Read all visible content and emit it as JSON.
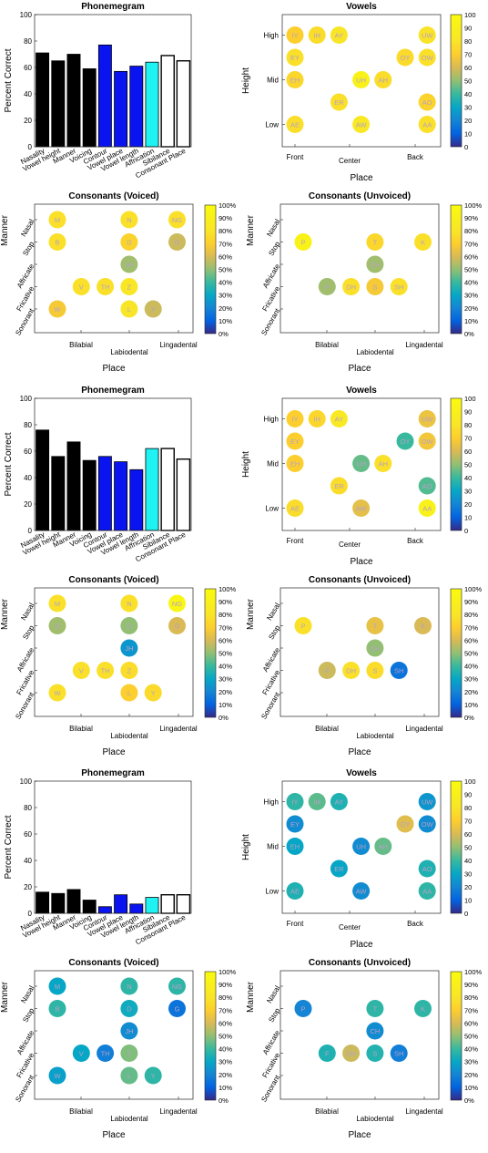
{
  "common": {
    "phone_title": "Phonemegram",
    "phone_ylabel": "Percent Correct",
    "phone_categories": [
      "Nasality",
      "Vowel height",
      "Manner",
      "Voicing",
      "Contour",
      "Vowel place",
      "Vowel length",
      "Affrication",
      "Sibilance",
      "Consonant Place"
    ],
    "phone_yticks": [
      "0",
      "20",
      "40",
      "60",
      "80",
      "100"
    ],
    "vowels_title": "Vowels",
    "vowels_xlabel": "Place",
    "vowels_ylabel": "Height",
    "vowels_xticks": [
      "Front",
      "Center",
      "Back"
    ],
    "vowels_yticks": [
      "High",
      "Mid",
      "Low"
    ],
    "cons_v_title": "Consonants (Voiced)",
    "cons_u_title": "Consonants (Unvoiced)",
    "cons_xlabel": "Place",
    "cons_ylabel": "Manner",
    "cons_xticks": [
      "Bilabial",
      "Labiodental",
      "Lingadental"
    ],
    "cons_yticks": [
      "Nasal",
      "Stop",
      "Affricate",
      "Fricative",
      "Sonorant"
    ],
    "colorbar_ticks_vowel": [
      "0",
      "10",
      "20",
      "30",
      "40",
      "50",
      "60",
      "70",
      "80",
      "90",
      "100"
    ],
    "colorbar_ticks_pct": [
      "0%",
      "10%",
      "20%",
      "30%",
      "40%",
      "50%",
      "60%",
      "70%",
      "80%",
      "90%",
      "100%"
    ],
    "colors": {
      "black_bar": "#000000",
      "blue_bar": "#0a14f0",
      "cyan_bar": "#1ef2f2",
      "white_bar": "#ffffff"
    }
  },
  "chart_data": [
    {
      "type": "bar",
      "title": "Phonemegram",
      "ylabel": "Percent Correct",
      "ylim": [
        0,
        100
      ],
      "categories": [
        "Nasality",
        "Vowel height",
        "Manner",
        "Voicing",
        "Contour",
        "Vowel place",
        "Vowel length",
        "Affrication",
        "Sibilance",
        "Consonant Place"
      ],
      "bar_colors": [
        "black",
        "black",
        "black",
        "black",
        "blue",
        "blue",
        "blue",
        "cyan",
        "white",
        "white"
      ],
      "rows": [
        [
          71,
          65,
          70,
          59,
          77,
          57,
          61,
          64,
          69,
          65
        ],
        [
          76,
          56,
          67,
          53,
          56,
          52,
          46,
          62,
          62,
          54
        ],
        [
          16,
          15,
          18,
          10,
          5,
          14,
          7,
          12,
          14,
          14
        ]
      ]
    },
    {
      "type": "scatter",
      "title": "Vowels",
      "xlabel": "Place",
      "ylabel": "Height",
      "color_range": [
        0,
        100
      ],
      "points": [
        {
          "label": "IY",
          "col": 0,
          "row": 0
        },
        {
          "label": "IH",
          "col": 1,
          "row": 0
        },
        {
          "label": "AY",
          "col": 2,
          "row": 0
        },
        {
          "label": "UW",
          "col": 6,
          "row": 0
        },
        {
          "label": "EY",
          "col": 0,
          "row": 1
        },
        {
          "label": "OY",
          "col": 5,
          "row": 1
        },
        {
          "label": "OW",
          "col": 6,
          "row": 1
        },
        {
          "label": "EH",
          "col": 0,
          "row": 2
        },
        {
          "label": "UH",
          "col": 3,
          "row": 2
        },
        {
          "label": "AH",
          "col": 4,
          "row": 2
        },
        {
          "label": "ER",
          "col": 2,
          "row": 3
        },
        {
          "label": "AO",
          "col": 6,
          "row": 3
        },
        {
          "label": "AE",
          "col": 0,
          "row": 4
        },
        {
          "label": "AW",
          "col": 3,
          "row": 4
        },
        {
          "label": "AA",
          "col": 6,
          "row": 4
        }
      ],
      "rows": [
        [
          70,
          76,
          80,
          79,
          78,
          75,
          78,
          74,
          92,
          76,
          78,
          72,
          77,
          83,
          78
        ],
        [
          70,
          74,
          84,
          65,
          70,
          40,
          67,
          70,
          45,
          78,
          76,
          43,
          76,
          63,
          92
        ],
        [
          38,
          44,
          35,
          25,
          22,
          62,
          22,
          30,
          22,
          45,
          30,
          35,
          35,
          22,
          38
        ]
      ]
    },
    {
      "type": "scatter",
      "title": "Consonants (Voiced)",
      "xlabel": "Place",
      "ylabel": "Manner",
      "color_range": [
        0,
        100
      ],
      "points": [
        {
          "label": "M",
          "col": 0,
          "row": 0
        },
        {
          "label": "N",
          "col": 3,
          "row": 0
        },
        {
          "label": "NG",
          "col": 5,
          "row": 0
        },
        {
          "label": "B",
          "col": 0,
          "row": 1
        },
        {
          "label": "D",
          "col": 3,
          "row": 1
        },
        {
          "label": "G",
          "col": 5,
          "row": 1
        },
        {
          "label": "JH",
          "col": 3,
          "row": 2
        },
        {
          "label": "V",
          "col": 1,
          "row": 3
        },
        {
          "label": "TH",
          "col": 2,
          "row": 3
        },
        {
          "label": "Z",
          "col": 3,
          "row": 3
        },
        {
          "label": "W",
          "col": 0,
          "row": 4
        },
        {
          "label": "L",
          "col": 3,
          "row": 4
        },
        {
          "label": "Y",
          "col": 4,
          "row": 4
        }
      ],
      "rows": [
        [
          78,
          78,
          78,
          78,
          72,
          58,
          52,
          78,
          78,
          82,
          68,
          80,
          58
        ],
        [
          78,
          78,
          95,
          52,
          50,
          60,
          25,
          78,
          78,
          76,
          78,
          70,
          75
        ],
        [
          30,
          38,
          38,
          38,
          32,
          15,
          22,
          30,
          18,
          48,
          28,
          45,
          38
        ]
      ]
    },
    {
      "type": "scatter",
      "title": "Consonants (Unvoiced)",
      "xlabel": "Place",
      "ylabel": "Manner",
      "color_range": [
        0,
        100
      ],
      "points": [
        {
          "label": "P",
          "col": 0,
          "row": 1
        },
        {
          "label": "T",
          "col": 3,
          "row": 1
        },
        {
          "label": "K",
          "col": 5,
          "row": 1
        },
        {
          "label": "CH",
          "col": 3,
          "row": 2
        },
        {
          "label": "F",
          "col": 1,
          "row": 3
        },
        {
          "label": "DH",
          "col": 2,
          "row": 3
        },
        {
          "label": "S",
          "col": 3,
          "row": 3
        },
        {
          "label": "SH",
          "col": 4,
          "row": 3
        }
      ],
      "rows": [
        [
          92,
          74,
          78,
          52,
          52,
          78,
          68,
          78
        ],
        [
          78,
          64,
          60,
          50,
          58,
          78,
          76,
          15
        ],
        [
          20,
          38,
          38,
          22,
          35,
          58,
          36,
          18
        ]
      ]
    }
  ]
}
